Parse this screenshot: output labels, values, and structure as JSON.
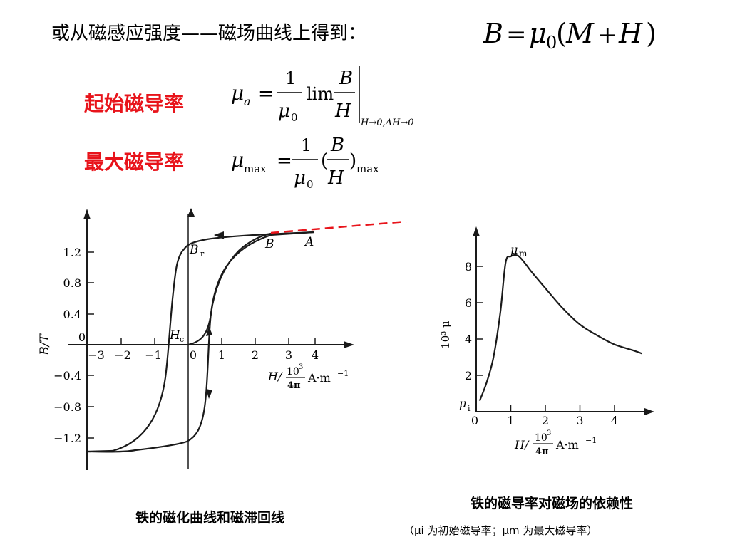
{
  "header": {
    "intro_text": "或从磁感应强度——磁场曲线上得到：",
    "main_formula": {
      "lhs": "B",
      "equals": "=",
      "mu": "μ",
      "sub": "0",
      "paren_open": "(",
      "m": "M",
      "plus": "+",
      "h": "H",
      "paren_close": ")"
    }
  },
  "definitions": [
    {
      "label": "起始磁导率",
      "mu": "μ",
      "mu_sub": "a",
      "equals": "=",
      "num": "1",
      "den_mu": "μ",
      "den_sub": "0",
      "lim": "lim",
      "frac_num": "B",
      "frac_den": "H",
      "limit_cond": "H→0,ΔH→0"
    },
    {
      "label": "最大磁导率",
      "mu": "μ",
      "mu_sub": "max",
      "equals": "=",
      "num": "1",
      "den_mu": "μ",
      "den_sub": "0",
      "paren_open": "(",
      "frac_num": "B",
      "frac_den": "H",
      "paren_close": ")",
      "paren_sub": "max"
    }
  ],
  "colors": {
    "accent": "#e8141b",
    "ink": "#1a1a1a"
  },
  "hysteresis_chart": {
    "caption": "铁的磁化曲线和磁滞回线",
    "ylabel": "B/T",
    "y_ticks": [
      "1.2",
      "0.8",
      "0.4",
      "0",
      "−0.4",
      "−0.8",
      "−1.2"
    ],
    "x_ticks": [
      "−3",
      "−2",
      "−1",
      "0",
      "1",
      "2",
      "3",
      "4"
    ],
    "xlabel_h": "H/",
    "xlabel_num": "10",
    "xlabel_exp": "3",
    "xlabel_den": "4π",
    "xlabel_unit": "A·m",
    "xlabel_unit_exp": "−1",
    "point_labels": {
      "br": "B",
      "br_sub": "r",
      "hc": "H",
      "hc_sub": "c",
      "b": "B",
      "a": "A"
    }
  },
  "chart_data": {
    "type": "line",
    "xlabel": "H/(10³/4π) A·m⁻¹",
    "ylabel": "10³ μ",
    "xlim": [
      0,
      5
    ],
    "ylim": [
      0,
      9
    ],
    "x_ticks": [
      "0",
      "1",
      "2",
      "3",
      "4"
    ],
    "y_ticks": [
      "2",
      "4",
      "6",
      "8"
    ],
    "series": [
      {
        "x": [
          0.1,
          0.3,
          0.5,
          0.7,
          0.85,
          1.0,
          1.2,
          1.4,
          1.6,
          2.0,
          2.5,
          3.0,
          3.5,
          4.0,
          4.5,
          4.8
        ],
        "values": [
          0.6,
          1.6,
          3.0,
          5.5,
          8.2,
          8.55,
          8.6,
          8.2,
          7.7,
          6.8,
          5.7,
          4.8,
          4.2,
          3.7,
          3.4,
          3.2
        ]
      }
    ],
    "annotations": {
      "peak": "μm",
      "start": "μi"
    }
  },
  "permeability_chart": {
    "caption": "铁的磁导率对磁场的依赖性",
    "note": "（μi 为初始磁导率；μm 为最大磁导率）",
    "ylabel": "10³ μ",
    "xlabel_h": "H/",
    "xlabel_num": "10",
    "xlabel_exp": "3",
    "xlabel_den": "4π",
    "xlabel_unit": "A·m",
    "xlabel_unit_exp": "−1",
    "mu_m": "μ",
    "mu_m_sub": "m",
    "mu_i": "μ",
    "mu_i_sub": "i"
  }
}
